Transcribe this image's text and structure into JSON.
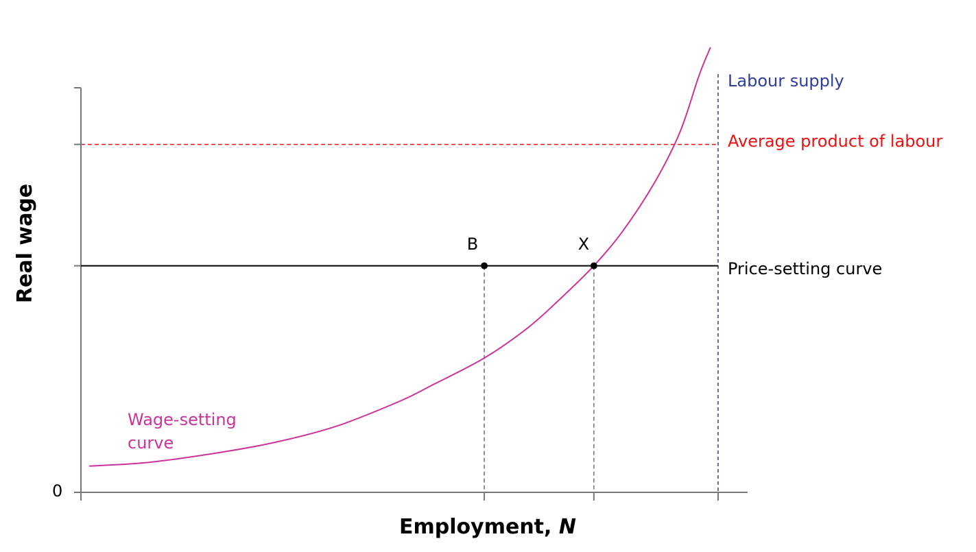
{
  "chart_data": {
    "type": "line",
    "title": "",
    "xlabel": "Employment, ",
    "xlabel_var": "N",
    "ylabel": "Real wage",
    "origin_label": "0",
    "grid": false,
    "lines": {
      "labour_supply": {
        "label": "Labour supply",
        "color": "#2e3d9e",
        "style": "dashed",
        "x": 1.0
      },
      "average_product": {
        "label": "Average product of labour",
        "color": "#ee1111",
        "style": "dashed",
        "y": 0.86
      },
      "price_setting": {
        "label": "Price-setting curve",
        "color": "#000000",
        "style": "solid",
        "y": 0.56
      }
    },
    "wage_setting_curve": {
      "label_line1": "Wage-setting",
      "label_line2": "curve",
      "color": "#cc3399",
      "points": [
        [
          0.013,
          0.065
        ],
        [
          0.1,
          0.073
        ],
        [
          0.2,
          0.094
        ],
        [
          0.3,
          0.122
        ],
        [
          0.4,
          0.163
        ],
        [
          0.5,
          0.225
        ],
        [
          0.55,
          0.264
        ],
        [
          0.633,
          0.332
        ],
        [
          0.7,
          0.405
        ],
        [
          0.75,
          0.475
        ],
        [
          0.805,
          0.56
        ],
        [
          0.85,
          0.645
        ],
        [
          0.9,
          0.765
        ],
        [
          0.94,
          0.89
        ],
        [
          0.97,
          1.03
        ],
        [
          0.988,
          1.1
        ]
      ]
    },
    "points": [
      {
        "label": "B",
        "x": 0.633,
        "y": 0.56
      },
      {
        "label": "X",
        "x": 0.805,
        "y": 0.56
      }
    ],
    "x_ticks": [
      0.633,
      0.805,
      1.0
    ],
    "y_ticks": [
      0.56,
      0.86,
      1.0
    ]
  }
}
